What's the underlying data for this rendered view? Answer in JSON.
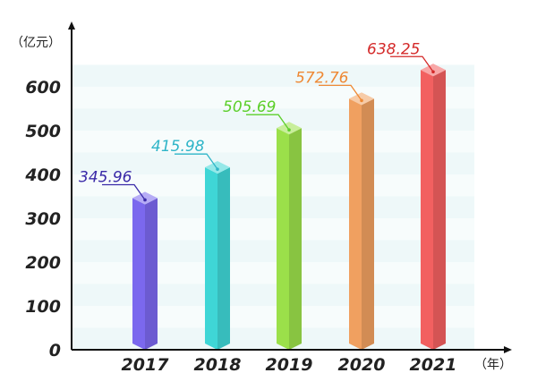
{
  "chart_data": {
    "type": "bar",
    "ylabel": "（亿元）",
    "xlabel": "（年）",
    "ylim": [
      0,
      650
    ],
    "yticks": [
      0,
      100,
      200,
      300,
      400,
      500,
      600
    ],
    "ytick_labels": [
      "0",
      "100",
      "200",
      "300",
      "400",
      "500",
      "600"
    ],
    "categories": [
      "2017",
      "2018",
      "2019",
      "2020",
      "2021"
    ],
    "values": [
      345.96,
      415.98,
      505.69,
      572.76,
      638.25
    ],
    "value_labels": [
      "345.96",
      "415.98",
      "505.69",
      "572.76",
      "638.25"
    ],
    "bar_colors": [
      "#7b68ee",
      "#3fd6d6",
      "#9be04a",
      "#f0a060",
      "#f26060"
    ],
    "label_colors": [
      "#3a2aa8",
      "#2fb5c8",
      "#5ccf2a",
      "#ee8833",
      "#d42a2a"
    ],
    "grid": "horizontal bands"
  }
}
